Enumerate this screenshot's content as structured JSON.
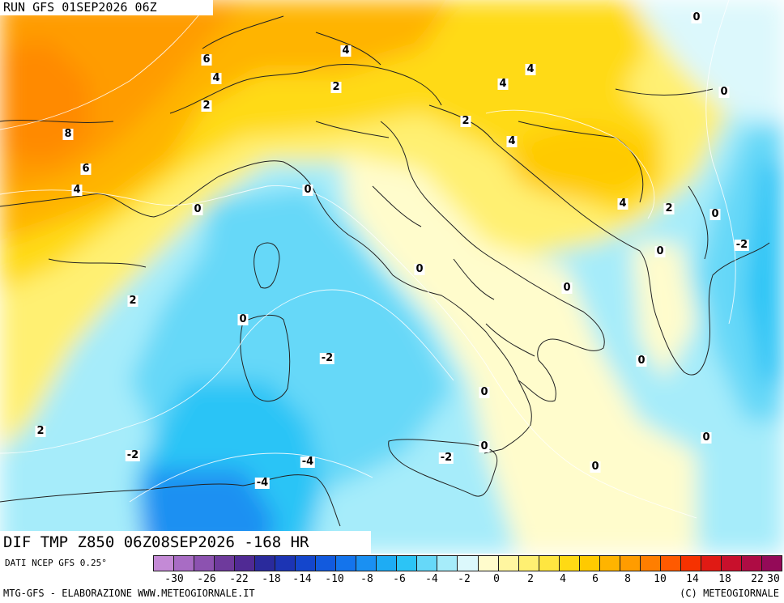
{
  "header": {
    "run": "RUN GFS 01SEP2026 06Z"
  },
  "field": {
    "label": "DIF TMP Z850 06Z08SEP2026 -168 HR"
  },
  "source": {
    "label": "DATI NCEP GFS 0.25°"
  },
  "footer": {
    "left": "MTG-GFS - ELABORAZIONE WWW.METEOGIORNALE.IT",
    "right": "(C) METEOGIORNALE"
  },
  "legend": {
    "colors": [
      "#c48ad6",
      "#a86cc4",
      "#8c52b0",
      "#6e3a9c",
      "#502a94",
      "#2a2a9c",
      "#1c34b4",
      "#1446cc",
      "#125ade",
      "#1474ec",
      "#1a90f2",
      "#1eacf4",
      "#2cc4f6",
      "#66d8f8",
      "#a6ecfa",
      "#dcf8fc",
      "#fffccc",
      "#fff6a0",
      "#fff072",
      "#ffe640",
      "#ffda14",
      "#ffca00",
      "#ffb400",
      "#ff9c00",
      "#ff7e00",
      "#ff5a00",
      "#f63200",
      "#e01a14",
      "#c8102c",
      "#ae0c44",
      "#940a58"
    ],
    "ticks": [
      "-30",
      "-26",
      "-22",
      "-18",
      "-14",
      "-10",
      "-8",
      "-6",
      "-4",
      "-2",
      "0",
      "2",
      "4",
      "6",
      "8",
      "10",
      "14",
      "18",
      "22",
      "30"
    ],
    "tick_positions": [
      -30,
      -26,
      -22,
      -18,
      -14,
      -10,
      -8,
      -6,
      -4,
      -2,
      0,
      2,
      4,
      6,
      8,
      10,
      14,
      18,
      22,
      30
    ]
  },
  "contour_labels": [
    {
      "text": "0",
      "region": "Balkans north"
    },
    {
      "text": "0",
      "region": "Balkans north-east"
    },
    {
      "text": "6",
      "region": "Western Alps"
    },
    {
      "text": "4",
      "region": "Western Alps"
    },
    {
      "text": "2",
      "region": "Western Alps"
    },
    {
      "text": "4",
      "region": "Central Alps"
    },
    {
      "text": "2",
      "region": "Lombardy"
    },
    {
      "text": "4",
      "region": "Austria"
    },
    {
      "text": "4",
      "region": "Slovenia"
    },
    {
      "text": "2",
      "region": "Croatia"
    },
    {
      "text": "4",
      "region": "Bosnia"
    },
    {
      "text": "8",
      "region": "France"
    },
    {
      "text": "6",
      "region": "France south"
    },
    {
      "text": "4",
      "region": "France south"
    },
    {
      "text": "0",
      "region": "Gulf of Lion"
    },
    {
      "text": "0",
      "region": "Ligurian Sea"
    },
    {
      "text": "4",
      "region": "Montenegro"
    },
    {
      "text": "2",
      "region": "Albania north"
    },
    {
      "text": "0",
      "region": "Balkans east"
    },
    {
      "text": "-2",
      "region": "Greece north"
    },
    {
      "text": "0",
      "region": "Albania"
    },
    {
      "text": "0",
      "region": "Tyrrhenian coast"
    },
    {
      "text": "0",
      "region": "Adriatic south"
    },
    {
      "text": "2",
      "region": "Balearic Sea"
    },
    {
      "text": "0",
      "region": "Sardinia"
    },
    {
      "text": "-2",
      "region": "Tyrrhenian Sea"
    },
    {
      "text": "0",
      "region": "Ionian Sea"
    },
    {
      "text": "0",
      "region": "Tyrrhenian south"
    },
    {
      "text": "2",
      "region": "Spain coast"
    },
    {
      "text": "-2",
      "region": "Algeria coast"
    },
    {
      "text": "-4",
      "region": "Sicily channel"
    },
    {
      "text": "-2",
      "region": "Sicily channel east"
    },
    {
      "text": "0",
      "region": "Sicily"
    },
    {
      "text": "0",
      "region": "Ionian south"
    },
    {
      "text": "0",
      "region": "Greece west"
    },
    {
      "text": "-4",
      "region": "Tunisia coast"
    }
  ]
}
